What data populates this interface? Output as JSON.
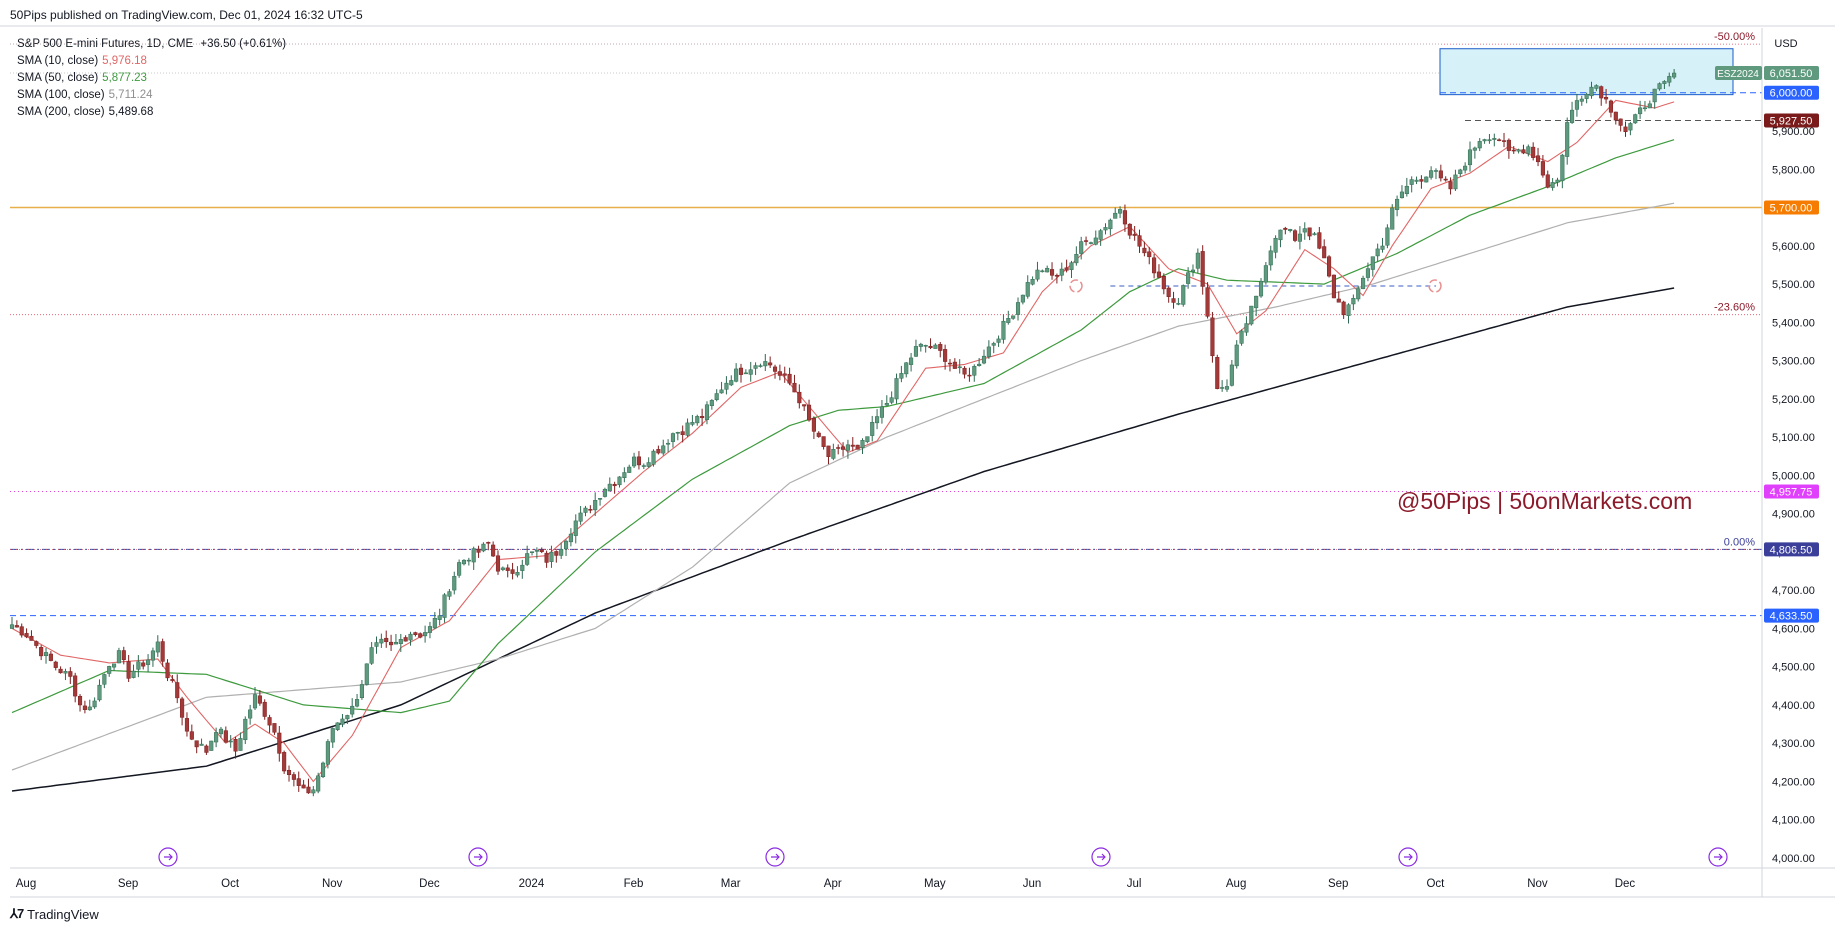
{
  "header": {
    "published": "50Pips published on TradingView.com, Dec 01, 2024 16:32 UTC-5"
  },
  "legend": {
    "symbol_line": "S&P 500 E-mini Futures, 1D, CME",
    "change": "+36.50 (+0.61%)",
    "smas": [
      {
        "label": "SMA (10, close)",
        "value": "5,976.18",
        "color": "#e06666"
      },
      {
        "label": "SMA (50, close)",
        "value": "5,877.23",
        "color": "#3d9a3d"
      },
      {
        "label": "SMA (100, close)",
        "value": "5,711.24",
        "color": "#9e9e9e"
      },
      {
        "label": "SMA (200, close)",
        "value": "5,489.68",
        "color": "#131722"
      }
    ]
  },
  "watermark": "@50Pips | 50onMarkets.com",
  "footer": {
    "brand": "TradingView"
  },
  "colors": {
    "up": "#26a69a",
    "down": "#8b1a1a",
    "up_body": "#4a8a6a",
    "down_body": "#9c2a2a",
    "sma10": "#e06666",
    "sma50": "#3d9a3d",
    "sma100": "#b0b0b0",
    "sma200": "#131722",
    "orange": "#f0b450",
    "dash_blue": "#3b5fc0",
    "fib_red": "#e05060",
    "magenta": "#e040e0",
    "box": "#d6f1f8",
    "box_border": "#1a5cc8"
  },
  "chart_data": {
    "type": "candlestick",
    "symbol": "ESZ2024",
    "interval": "1D",
    "ylim": [
      4000,
      6150
    ],
    "y_ticks": [
      4000,
      4100,
      4200,
      4300,
      4400,
      4500,
      4600,
      4700,
      4800,
      4900,
      5000,
      5100,
      5200,
      5300,
      5400,
      5500,
      5600,
      5700,
      5800,
      5900
    ],
    "y_tick_labels": [
      "4,000.00",
      "4,100.00",
      "4,200.00",
      "4,300.00",
      "4,400.00",
      "4,500.00",
      "4,600.00",
      "4,700.00",
      "4,800.00",
      "4,900.00",
      "5,000.00",
      "5,100.00",
      "5,200.00",
      "5,300.00",
      "5,400.00",
      "5,500.00",
      "5,600.00",
      "5,700.00",
      "5,800.00",
      "5,900.00"
    ],
    "currency": "USD",
    "x_labels": [
      "Aug",
      "Sep",
      "Oct",
      "Nov",
      "Dec",
      "2024",
      "Feb",
      "Mar",
      "Apr",
      "May",
      "Jun",
      "Jul",
      "Aug",
      "Sep",
      "Oct",
      "Nov",
      "Dec"
    ],
    "x_label_positions": [
      0,
      21,
      42,
      63,
      83,
      104,
      125,
      145,
      166,
      187,
      207,
      228,
      249,
      270,
      290,
      311,
      329
    ],
    "closes_anchor": [
      [
        0,
        4610
      ],
      [
        3,
        4585
      ],
      [
        6,
        4540
      ],
      [
        9,
        4500
      ],
      [
        12,
        4470
      ],
      [
        14,
        4400
      ],
      [
        16,
        4390
      ],
      [
        18,
        4450
      ],
      [
        20,
        4510
      ],
      [
        22,
        4530
      ],
      [
        24,
        4480
      ],
      [
        26,
        4500
      ],
      [
        28,
        4520
      ],
      [
        30,
        4560
      ],
      [
        32,
        4480
      ],
      [
        34,
        4420
      ],
      [
        36,
        4330
      ],
      [
        38,
        4300
      ],
      [
        40,
        4280
      ],
      [
        42,
        4340
      ],
      [
        44,
        4310
      ],
      [
        46,
        4280
      ],
      [
        48,
        4360
      ],
      [
        50,
        4420
      ],
      [
        52,
        4380
      ],
      [
        54,
        4330
      ],
      [
        56,
        4240
      ],
      [
        58,
        4200
      ],
      [
        60,
        4170
      ],
      [
        62,
        4180
      ],
      [
        64,
        4250
      ],
      [
        66,
        4340
      ],
      [
        68,
        4370
      ],
      [
        70,
        4390
      ],
      [
        72,
        4460
      ],
      [
        74,
        4540
      ],
      [
        76,
        4560
      ],
      [
        78,
        4550
      ],
      [
        80,
        4570
      ],
      [
        82,
        4590
      ],
      [
        84,
        4585
      ],
      [
        86,
        4600
      ],
      [
        88,
        4640
      ],
      [
        90,
        4710
      ],
      [
        92,
        4770
      ],
      [
        94,
        4790
      ],
      [
        96,
        4800
      ],
      [
        98,
        4820
      ],
      [
        100,
        4760
      ],
      [
        102,
        4740
      ],
      [
        104,
        4760
      ],
      [
        106,
        4790
      ],
      [
        108,
        4800
      ],
      [
        110,
        4780
      ],
      [
        112,
        4800
      ],
      [
        114,
        4840
      ],
      [
        116,
        4880
      ],
      [
        118,
        4905
      ],
      [
        120,
        4935
      ],
      [
        122,
        4970
      ],
      [
        124,
        4985
      ],
      [
        126,
        5015
      ],
      [
        128,
        5040
      ],
      [
        130,
        5035
      ],
      [
        132,
        5060
      ],
      [
        134,
        5080
      ],
      [
        136,
        5110
      ],
      [
        138,
        5120
      ],
      [
        140,
        5140
      ],
      [
        142,
        5155
      ],
      [
        144,
        5190
      ],
      [
        146,
        5230
      ],
      [
        148,
        5260
      ],
      [
        150,
        5275
      ],
      [
        152,
        5285
      ],
      [
        154,
        5300
      ],
      [
        156,
        5290
      ],
      [
        158,
        5260
      ],
      [
        160,
        5240
      ],
      [
        162,
        5200
      ],
      [
        164,
        5140
      ],
      [
        166,
        5090
      ],
      [
        168,
        5050
      ],
      [
        170,
        5060
      ],
      [
        172,
        5080
      ],
      [
        174,
        5060
      ],
      [
        176,
        5100
      ],
      [
        178,
        5150
      ],
      [
        180,
        5190
      ],
      [
        182,
        5240
      ],
      [
        184,
        5290
      ],
      [
        186,
        5330
      ],
      [
        188,
        5340
      ],
      [
        190,
        5330
      ],
      [
        192,
        5310
      ],
      [
        194,
        5280
      ],
      [
        196,
        5260
      ],
      [
        198,
        5280
      ],
      [
        200,
        5320
      ],
      [
        202,
        5350
      ],
      [
        204,
        5390
      ],
      [
        206,
        5430
      ],
      [
        208,
        5480
      ],
      [
        210,
        5520
      ],
      [
        212,
        5540
      ],
      [
        214,
        5520
      ],
      [
        216,
        5530
      ],
      [
        218,
        5560
      ],
      [
        220,
        5600
      ],
      [
        222,
        5620
      ],
      [
        224,
        5640
      ],
      [
        226,
        5670
      ],
      [
        228,
        5700
      ],
      [
        230,
        5640
      ],
      [
        232,
        5600
      ],
      [
        234,
        5560
      ],
      [
        236,
        5520
      ],
      [
        238,
        5470
      ],
      [
        240,
        5460
      ],
      [
        242,
        5520
      ],
      [
        244,
        5580
      ],
      [
        246,
        5420
      ],
      [
        248,
        5220
      ],
      [
        250,
        5240
      ],
      [
        252,
        5330
      ],
      [
        254,
        5400
      ],
      [
        256,
        5460
      ],
      [
        258,
        5560
      ],
      [
        260,
        5630
      ],
      [
        262,
        5640
      ],
      [
        264,
        5620
      ],
      [
        266,
        5650
      ],
      [
        268,
        5620
      ],
      [
        270,
        5560
      ],
      [
        272,
        5470
      ],
      [
        274,
        5430
      ],
      [
        276,
        5450
      ],
      [
        278,
        5520
      ],
      [
        280,
        5570
      ],
      [
        282,
        5610
      ],
      [
        284,
        5690
      ],
      [
        286,
        5740
      ],
      [
        288,
        5770
      ],
      [
        290,
        5780
      ],
      [
        292,
        5800
      ],
      [
        294,
        5770
      ],
      [
        296,
        5750
      ],
      [
        298,
        5800
      ],
      [
        300,
        5840
      ],
      [
        302,
        5880
      ],
      [
        304,
        5890
      ],
      [
        306,
        5880
      ],
      [
        308,
        5840
      ],
      [
        310,
        5850
      ],
      [
        312,
        5860
      ],
      [
        314,
        5820
      ],
      [
        316,
        5760
      ],
      [
        318,
        5770
      ],
      [
        320,
        5920
      ],
      [
        322,
        5980
      ],
      [
        324,
        6010
      ],
      [
        326,
        6020
      ],
      [
        328,
        5980
      ],
      [
        330,
        5940
      ],
      [
        332,
        5900
      ],
      [
        334,
        5930
      ],
      [
        336,
        5970
      ],
      [
        338,
        6000
      ],
      [
        340,
        6020
      ],
      [
        342,
        6051.5
      ]
    ],
    "sma10": "computed",
    "sma50": "computed",
    "sma100": "computed",
    "sma200_anchor": [
      [
        0,
        4175
      ],
      [
        40,
        4240
      ],
      [
        80,
        4400
      ],
      [
        120,
        4640
      ],
      [
        160,
        4830
      ],
      [
        200,
        5010
      ],
      [
        240,
        5160
      ],
      [
        280,
        5300
      ],
      [
        320,
        5440
      ],
      [
        342,
        5489.68
      ]
    ],
    "sma100_anchor": [
      [
        0,
        4230
      ],
      [
        40,
        4420
      ],
      [
        80,
        4460
      ],
      [
        100,
        4520
      ],
      [
        120,
        4600
      ],
      [
        140,
        4760
      ],
      [
        160,
        4980
      ],
      [
        180,
        5100
      ],
      [
        200,
        5200
      ],
      [
        220,
        5300
      ],
      [
        240,
        5390
      ],
      [
        260,
        5440
      ],
      [
        280,
        5500
      ],
      [
        300,
        5580
      ],
      [
        320,
        5660
      ],
      [
        342,
        5711.24
      ]
    ],
    "sma50_anchor": [
      [
        0,
        4380
      ],
      [
        20,
        4490
      ],
      [
        40,
        4480
      ],
      [
        60,
        4400
      ],
      [
        80,
        4380
      ],
      [
        90,
        4410
      ],
      [
        100,
        4560
      ],
      [
        120,
        4800
      ],
      [
        140,
        4990
      ],
      [
        160,
        5130
      ],
      [
        170,
        5170
      ],
      [
        180,
        5180
      ],
      [
        200,
        5240
      ],
      [
        220,
        5380
      ],
      [
        230,
        5480
      ],
      [
        240,
        5540
      ],
      [
        250,
        5510
      ],
      [
        270,
        5500
      ],
      [
        285,
        5580
      ],
      [
        300,
        5680
      ],
      [
        315,
        5750
      ],
      [
        330,
        5830
      ],
      [
        342,
        5877.23
      ]
    ],
    "sma10_anchor": [
      [
        0,
        4600
      ],
      [
        10,
        4530
      ],
      [
        20,
        4510
      ],
      [
        30,
        4520
      ],
      [
        36,
        4420
      ],
      [
        44,
        4300
      ],
      [
        50,
        4350
      ],
      [
        56,
        4300
      ],
      [
        62,
        4200
      ],
      [
        70,
        4320
      ],
      [
        80,
        4550
      ],
      [
        90,
        4620
      ],
      [
        100,
        4780
      ],
      [
        110,
        4790
      ],
      [
        120,
        4900
      ],
      [
        130,
        5010
      ],
      [
        140,
        5110
      ],
      [
        150,
        5230
      ],
      [
        158,
        5270
      ],
      [
        166,
        5150
      ],
      [
        172,
        5060
      ],
      [
        178,
        5090
      ],
      [
        188,
        5280
      ],
      [
        196,
        5290
      ],
      [
        204,
        5320
      ],
      [
        212,
        5480
      ],
      [
        222,
        5600
      ],
      [
        230,
        5650
      ],
      [
        238,
        5540
      ],
      [
        246,
        5500
      ],
      [
        252,
        5370
      ],
      [
        258,
        5430
      ],
      [
        266,
        5590
      ],
      [
        272,
        5540
      ],
      [
        278,
        5470
      ],
      [
        284,
        5600
      ],
      [
        292,
        5750
      ],
      [
        300,
        5790
      ],
      [
        308,
        5860
      ],
      [
        316,
        5820
      ],
      [
        322,
        5870
      ],
      [
        330,
        5980
      ],
      [
        338,
        5960
      ],
      [
        342,
        5976.18
      ]
    ],
    "levels": [
      {
        "label": "6,000.00",
        "value": 6000,
        "style": "dash",
        "color": "#2962ff",
        "tag_bg": "#2962ff"
      },
      {
        "label": "5,927.50",
        "value": 5927.5,
        "style": "dash",
        "color": "#555555",
        "tag_bg": "#7a1a1a"
      },
      {
        "label": "5,700.00",
        "value": 5700,
        "style": "solid",
        "color": "#e8b04a",
        "tag_bg": "#f57c00"
      },
      {
        "label": "4,957.75",
        "value": 4957.75,
        "style": "dot",
        "color": "#e040e0",
        "tag_bg": "#e040fb"
      },
      {
        "label": "4,806.50",
        "value": 4806.5,
        "style": "dashdot",
        "color": "#3b3f9a",
        "tag_bg": "#3b3f9a"
      },
      {
        "label": "4,633.50",
        "value": 4633.5,
        "style": "dash",
        "color": "#2962ff",
        "tag_bg": "#2962ff"
      }
    ],
    "fib": [
      {
        "label": "-50.00%",
        "value": 6127
      },
      {
        "label": "-23.60%",
        "value": 5420
      },
      {
        "label": "0.00%",
        "value": 4806.5
      }
    ],
    "price_tag": {
      "symbol": "ESZ2024",
      "value_label": "6,051.50",
      "value": 6051.5
    },
    "zone": {
      "y_top": 6115,
      "y_bottom": 5995,
      "x_start": 300,
      "x_end": 362
    },
    "midline": {
      "value": 5495,
      "x_start": 226,
      "x_end": 293
    }
  }
}
